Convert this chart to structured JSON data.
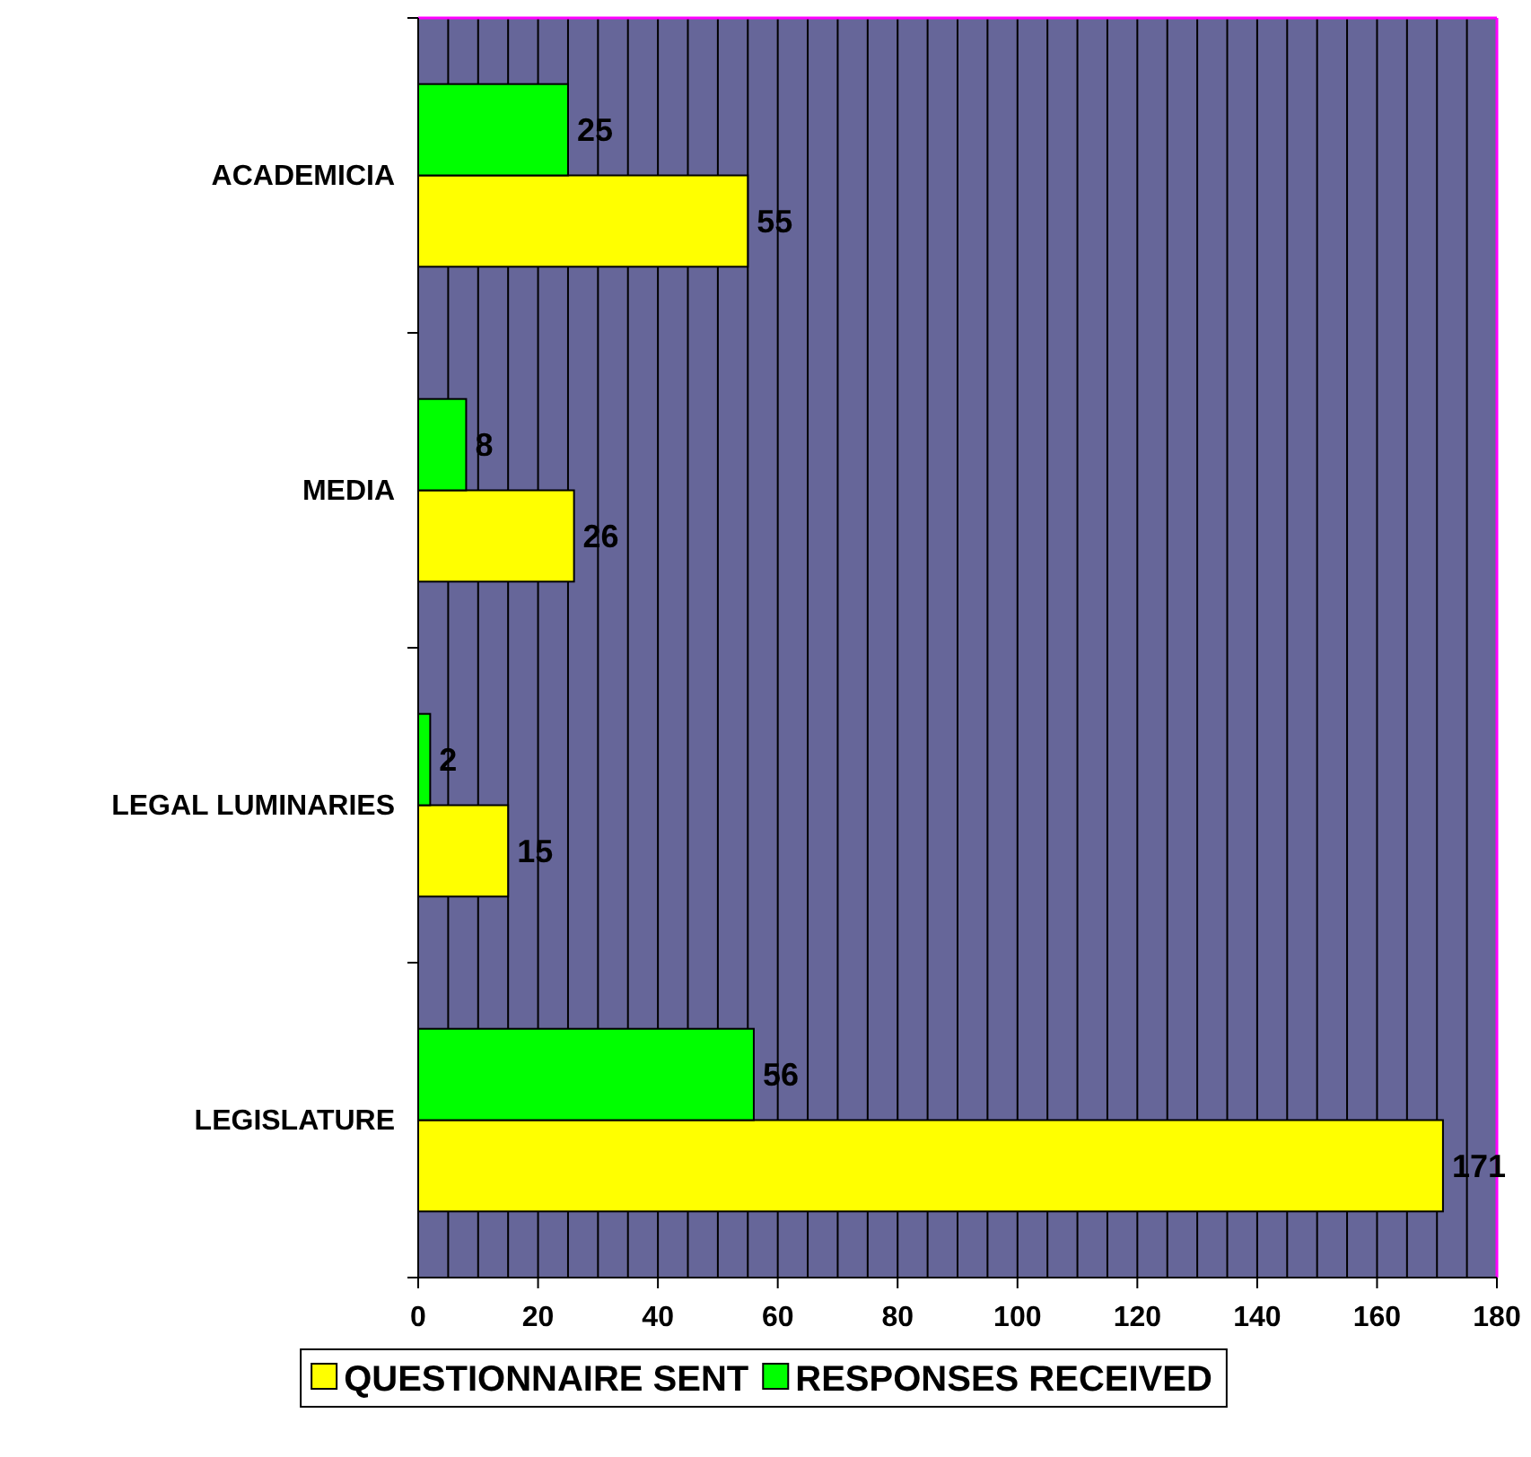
{
  "chart_data": {
    "type": "bar",
    "orientation": "horizontal",
    "categories": [
      "ACADEMICIA",
      "MEDIA",
      "LEGAL LUMINARIES",
      "LEGISLATURE"
    ],
    "series": [
      {
        "name": "QUESTIONNAIRE SENT",
        "color": "#ffff00",
        "values": [
          55,
          26,
          15,
          171
        ]
      },
      {
        "name": "RESPONSES RECEIVED",
        "color": "#00ff00",
        "values": [
          25,
          8,
          2,
          56
        ]
      }
    ],
    "xlim": [
      0,
      180
    ],
    "xticks": [
      0,
      {
        "value": 5,
        "label": null
      },
      {
        "value": 10,
        "label": null
      },
      {
        "value": 15,
        "label": null
      },
      20,
      {
        "value": 25,
        "label": null
      },
      {
        "value": 30,
        "label": null
      },
      {
        "value": 35,
        "label": null
      },
      40,
      {
        "value": 45,
        "label": null
      },
      {
        "value": 50,
        "label": null
      },
      {
        "value": 55,
        "label": null
      },
      60,
      {
        "value": 65,
        "label": null
      },
      {
        "value": 70,
        "label": null
      },
      {
        "value": 75,
        "label": null
      },
      80,
      {
        "value": 85,
        "label": null
      },
      {
        "value": 90,
        "label": null
      },
      {
        "value": 95,
        "label": null
      },
      100,
      {
        "value": 105,
        "label": null
      },
      {
        "value": 110,
        "label": null
      },
      {
        "value": 115,
        "label": null
      },
      120,
      {
        "value": 125,
        "label": null
      },
      {
        "value": 130,
        "label": null
      },
      {
        "value": 135,
        "label": null
      },
      140,
      {
        "value": 145,
        "label": null
      },
      {
        "value": 150,
        "label": null
      },
      {
        "value": 155,
        "label": null
      },
      160,
      {
        "value": 165,
        "label": null
      },
      {
        "value": 170,
        "label": null
      },
      {
        "value": 175,
        "label": null
      },
      180
    ],
    "grid": "x",
    "data_labels": true,
    "legend": "bottom"
  }
}
